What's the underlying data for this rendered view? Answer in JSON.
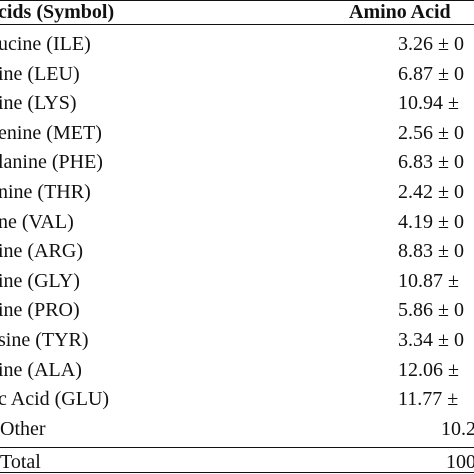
{
  "table": {
    "header": [
      "cids (Symbol)",
      "Amino Acid"
    ],
    "rows": [
      [
        "ucine (ILE)",
        "3.26 ± 0"
      ],
      [
        "ine (LEU)",
        "6.87 ± 0"
      ],
      [
        "ine (LYS)",
        "10.94 ±"
      ],
      [
        "enine (MET)",
        "2.56 ± 0"
      ],
      [
        "lanine (PHE)",
        "6.83 ± 0"
      ],
      [
        "nine (THR)",
        "2.42 ± 0"
      ],
      [
        "ne (VAL)",
        "4.19 ± 0"
      ],
      [
        "ine (ARG)",
        "8.83 ± 0"
      ],
      [
        "ine (GLY)",
        "10.87 ±"
      ],
      [
        "ine (PRO)",
        "5.86 ± 0"
      ],
      [
        "sine (TYR)",
        "3.34 ± 0"
      ],
      [
        "ine (ALA)",
        "12.06 ±"
      ],
      [
        "c Acid (GLU)",
        "11.77 ±"
      ],
      [
        "Other",
        "10.2"
      ],
      [
        "Total",
        "100"
      ]
    ]
  }
}
